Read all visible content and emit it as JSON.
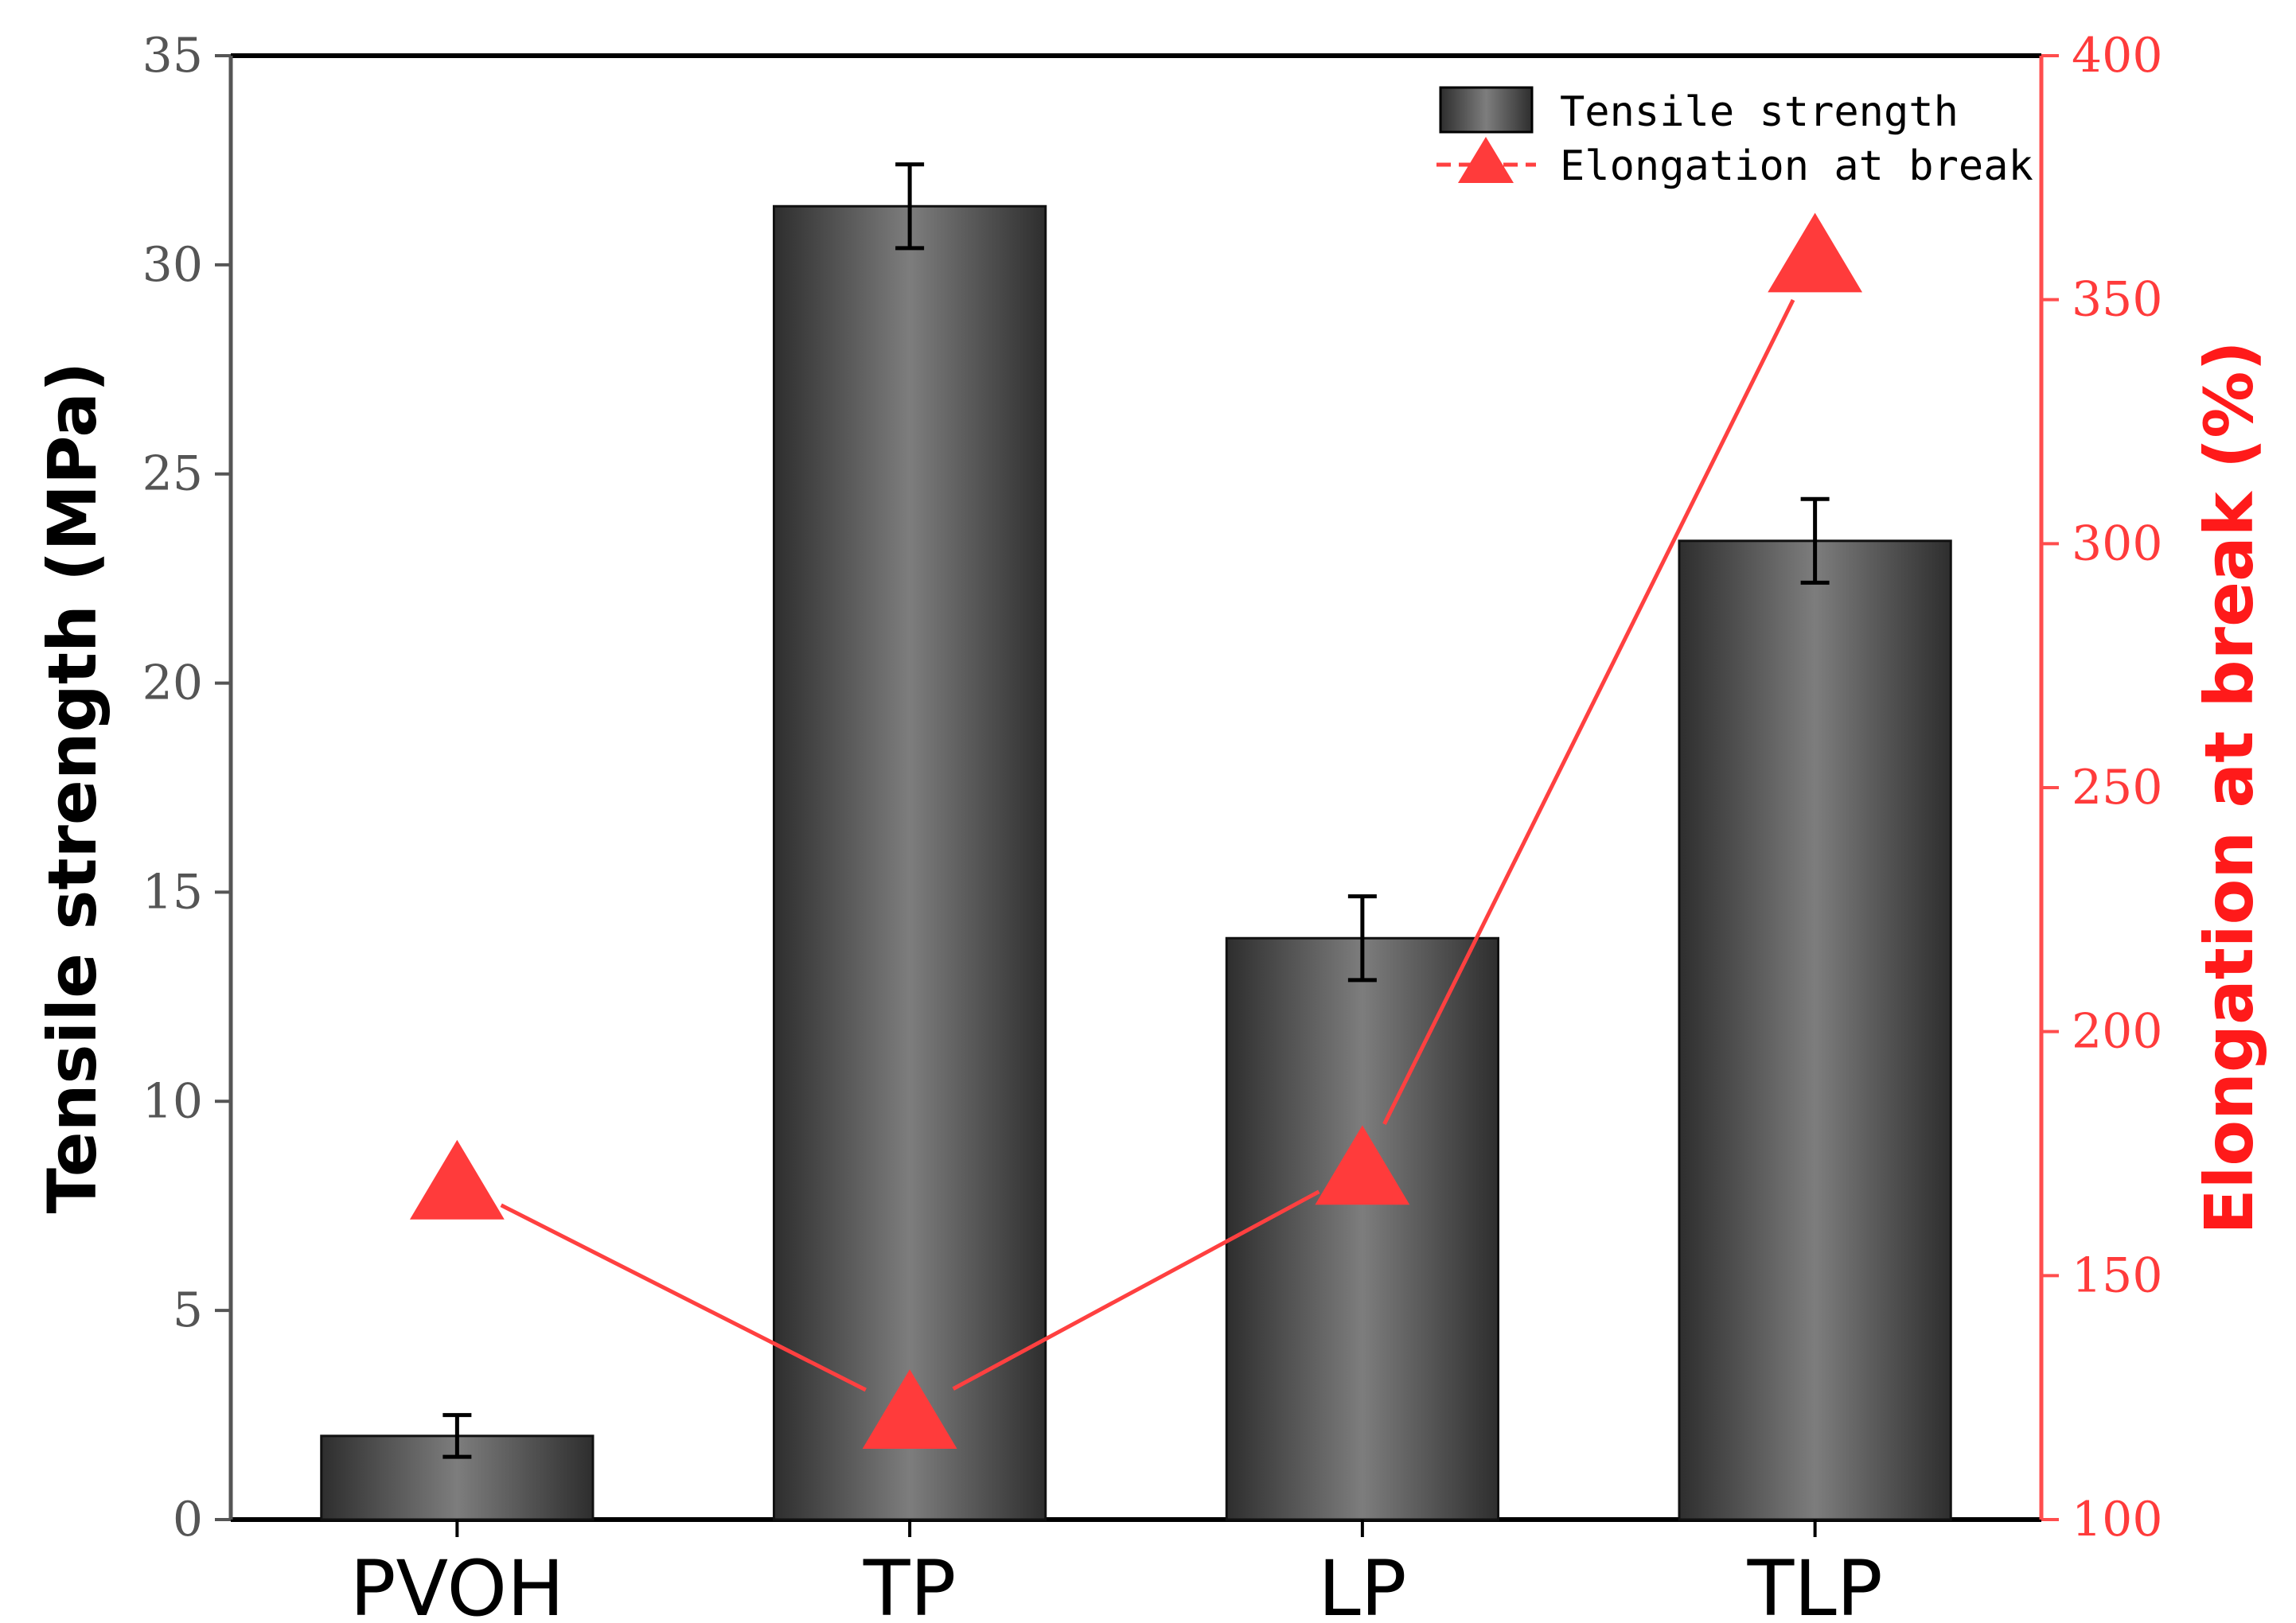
{
  "chart_data": {
    "type": "bar",
    "categories": [
      "PVOH",
      "TP",
      "LP",
      "TLP"
    ],
    "series": [
      {
        "name": "Tensile strength",
        "type": "bar",
        "axis": "left",
        "values": [
          2.0,
          31.4,
          13.9,
          23.4
        ],
        "errors": [
          0.5,
          1.0,
          1.0,
          1.0
        ]
      },
      {
        "name": "Elongation at break",
        "type": "line",
        "axis": "right",
        "marker": "triangle",
        "values": [
          169,
          122,
          172,
          359
        ]
      }
    ],
    "ylabel_left": "Tensile strength (MPa)",
    "ylabel_right": "Elongation at break (%)",
    "ylim_left": [
      0,
      35
    ],
    "ylim_right": [
      100,
      400
    ],
    "yticks_left": [
      0,
      5,
      10,
      15,
      20,
      25,
      30,
      35
    ],
    "yticks_right": [
      100,
      150,
      200,
      250,
      300,
      350,
      400
    ],
    "legend_position": "top-right",
    "grid": false,
    "colors": {
      "bar_dark": "#3a3a3a",
      "bar_light": "#7a7a7a",
      "line": "#ff4040",
      "right_axis": "#ff4d4d",
      "right_label": "#ff1a1a"
    }
  }
}
